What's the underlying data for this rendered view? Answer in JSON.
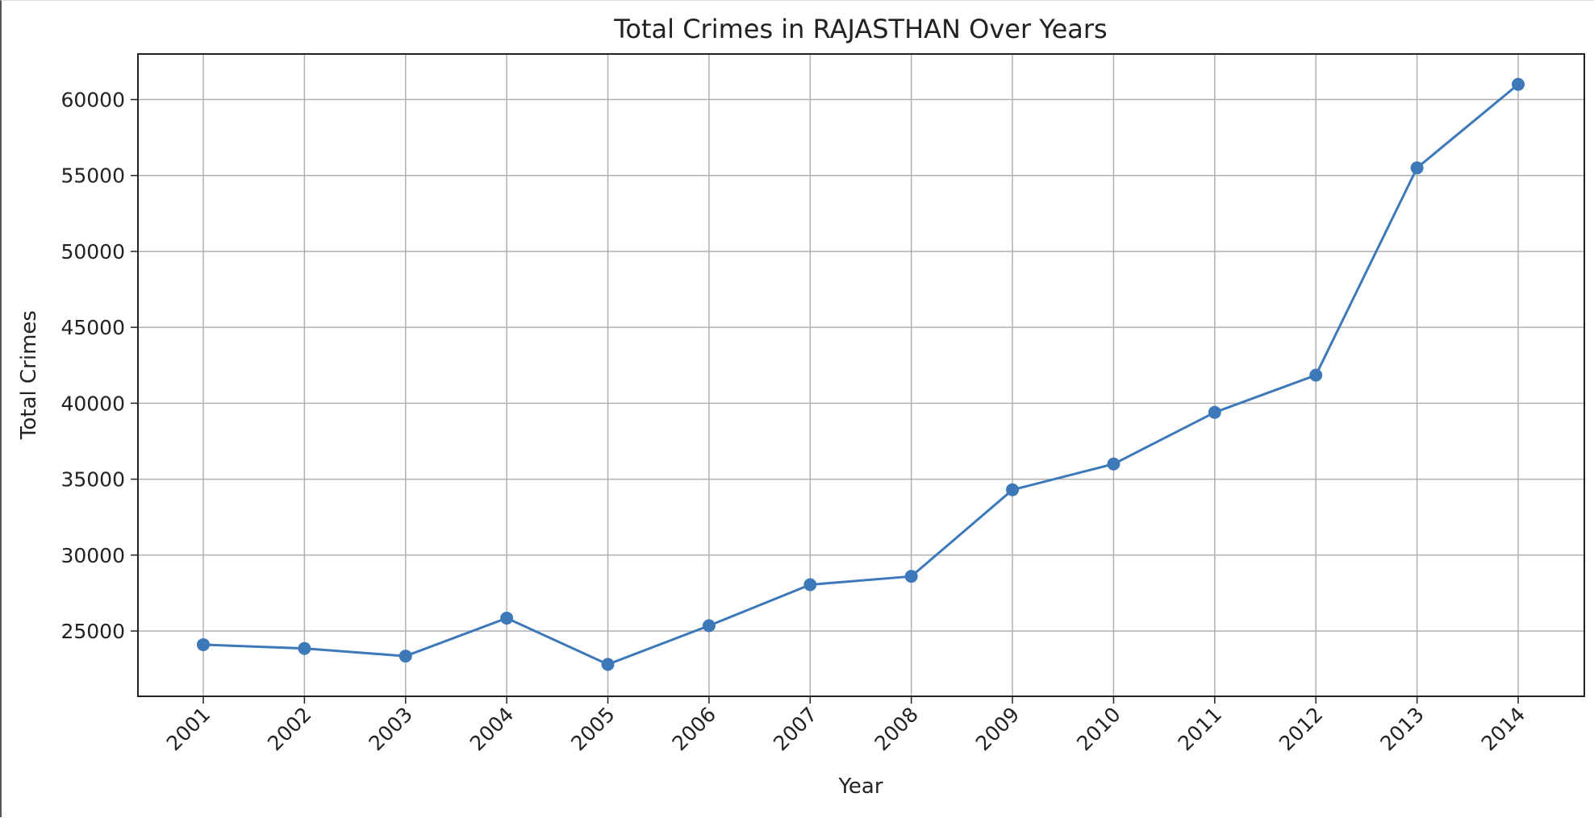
{
  "chart_data": {
    "type": "line",
    "title": "Total Crimes in RAJASTHAN Over Years",
    "xlabel": "Year",
    "ylabel": "Total Crimes",
    "x": [
      "2001",
      "2002",
      "2003",
      "2004",
      "2005",
      "2006",
      "2007",
      "2008",
      "2009",
      "2010",
      "2011",
      "2012",
      "2013",
      "2014"
    ],
    "series": [
      {
        "values": [
          24100,
          23850,
          23350,
          25850,
          22800,
          25350,
          28050,
          28600,
          34300,
          36000,
          39400,
          41850,
          55500,
          61000
        ]
      }
    ],
    "yticks": [
      25000,
      30000,
      35000,
      40000,
      45000,
      50000,
      55000,
      60000
    ],
    "ylim": [
      20700,
      63000
    ],
    "grid": true,
    "marker": "circle",
    "line_color": "#3d78b8"
  }
}
